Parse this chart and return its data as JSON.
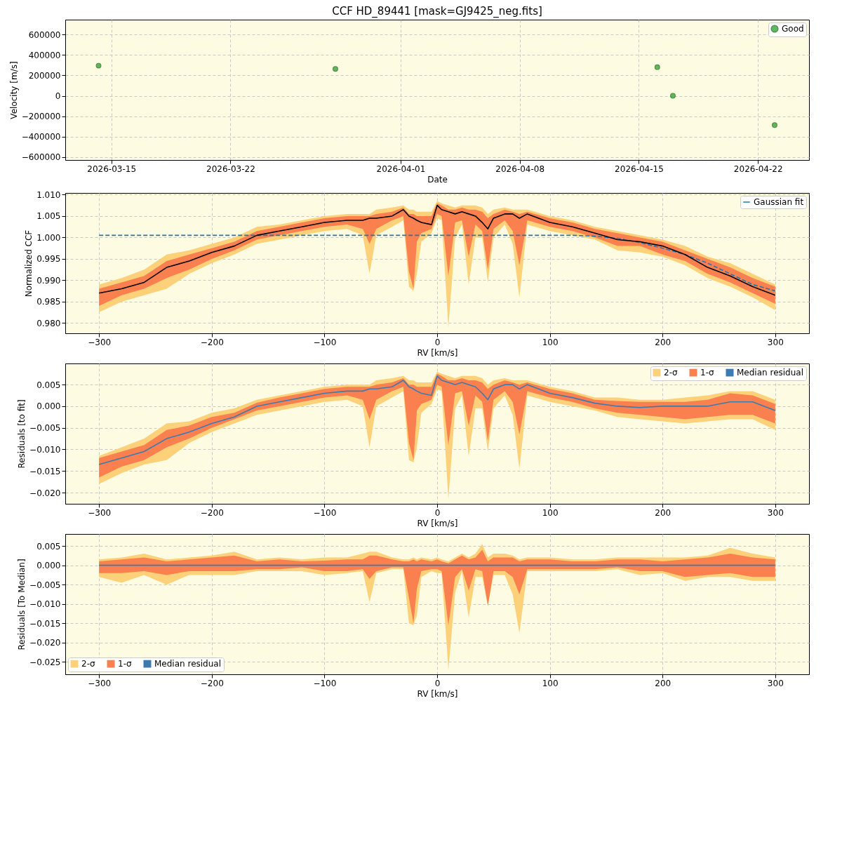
{
  "chart_data": [
    {
      "type": "scatter",
      "title": "CCF HD_89441 [mask=GJ9425_neg.fits]",
      "xlabel": "Date",
      "ylabel": "Velocity [m/s]",
      "x": [
        "2026-03-14T06:00",
        "2026-03-28T04:00",
        "2026-04-16T02:00",
        "2026-04-17T00:00",
        "2026-04-22T23:30"
      ],
      "series": [
        {
          "name": "Good",
          "color": "#2ca02c",
          "values": [
            295000,
            263000,
            281000,
            0,
            -287000
          ]
        }
      ],
      "xlim": [
        "2026-03-12T07:00",
        "2026-04-25T00:00"
      ],
      "xticks": [
        "2026-03-15",
        "2026-03-22",
        "2026-04-01",
        "2026-04-08",
        "2026-04-15",
        "2026-04-22"
      ],
      "ylim": [
        -629000,
        746000
      ],
      "yticks": [
        -600000,
        -400000,
        -200000,
        0,
        200000,
        400000,
        600000
      ],
      "grid": true,
      "legend": "top right",
      "marker": "circle"
    },
    {
      "type": "line",
      "xlabel": "RV [km/s]",
      "ylabel": "Normalized CCF",
      "x": [
        -300,
        -280,
        -260,
        -240,
        -220,
        -200,
        -180,
        -160,
        -140,
        -120,
        -100,
        -80,
        -66,
        -60,
        -54,
        -40,
        -30,
        -25,
        -21,
        -18,
        -14,
        -5,
        0,
        4,
        10,
        16,
        22,
        28,
        34,
        40,
        45,
        50,
        60,
        67,
        73,
        80,
        100,
        120,
        140,
        160,
        180,
        200,
        220,
        240,
        260,
        280,
        300
      ],
      "series": [
        {
          "type": "area",
          "color": "#fdd07a",
          "values": [
            null,
            null,
            null,
            null,
            null,
            null,
            null,
            null,
            null,
            null,
            null,
            null,
            null,
            null,
            null,
            null,
            null,
            null,
            null,
            null,
            null,
            null,
            null,
            null,
            null,
            null,
            null,
            null,
            null,
            null,
            null,
            null,
            null,
            null,
            null,
            null,
            null,
            null,
            null,
            null,
            null,
            null,
            null,
            null,
            null,
            null,
            null
          ],
          "lower": [
            0.9825,
            0.985,
            0.9865,
            0.988,
            0.9915,
            0.994,
            0.996,
            0.9985,
            0.9995,
            1.0005,
            1.0015,
            1.002,
            1.0005,
            0.9915,
            1.0005,
            1.0025,
            1.004,
            0.9885,
            0.9875,
            0.9915,
            0.999,
            1.001,
            1.0045,
            1.004,
            0.979,
            1.0,
            1.003,
            0.989,
            1.0,
            1.0,
            0.9895,
            1.0,
            1.003,
            0.9985,
            0.986,
            1.003,
            1.0015,
            1.0005,
            0.9995,
            0.997,
            0.9965,
            0.9955,
            0.9935,
            0.9905,
            0.9885,
            0.986,
            0.983
          ],
          "upper": [
            0.989,
            0.9905,
            0.9925,
            0.996,
            0.997,
            0.9985,
            1.0,
            1.0025,
            1.003,
            1.004,
            1.005,
            1.0055,
            1.0055,
            1.0055,
            1.0065,
            1.007,
            1.0075,
            1.0065,
            1.0065,
            1.006,
            1.006,
            1.006,
            1.0085,
            1.008,
            1.0075,
            1.007,
            1.0075,
            1.0075,
            1.0075,
            1.007,
            1.0055,
            1.0065,
            1.007,
            1.0065,
            1.0065,
            1.0065,
            1.005,
            1.004,
            1.0025,
            1.0015,
            1.0005,
            0.9995,
            0.998,
            0.9955,
            0.994,
            0.9915,
            0.989
          ]
        },
        {
          "type": "area",
          "color": "#fa8050",
          "values": [
            null,
            null,
            null,
            null,
            null,
            null,
            null,
            null,
            null,
            null,
            null,
            null,
            null,
            null,
            null,
            null,
            null,
            null,
            null,
            null,
            null,
            null,
            null,
            null,
            null,
            null,
            null,
            null,
            null,
            null,
            null,
            null,
            null,
            null,
            null,
            null,
            null,
            null,
            null,
            null,
            null,
            null,
            null,
            null,
            null,
            null,
            null
          ],
          "lower": [
            0.984,
            0.9865,
            0.988,
            0.9905,
            0.9925,
            0.995,
            0.997,
            0.9995,
            1.0005,
            1.0015,
            1.0025,
            1.003,
            1.002,
            0.9985,
            1.002,
            1.004,
            1.005,
            0.992,
            0.988,
            0.999,
            1.001,
            1.002,
            1.0055,
            1.005,
            0.991,
            1.0035,
            1.004,
            0.9955,
            1.003,
            1.0015,
            0.9925,
            1.002,
            1.004,
            1.0015,
            0.9935,
            1.004,
            1.0025,
            1.0015,
            1.0,
            0.998,
            0.998,
            0.996,
            0.9945,
            0.9915,
            0.9895,
            0.987,
            0.9845
          ],
          "upper": [
            0.988,
            0.9895,
            0.991,
            0.9945,
            0.996,
            0.9975,
            0.999,
            1.0015,
            1.0025,
            1.0035,
            1.0045,
            1.005,
            1.005,
            1.005,
            1.0055,
            1.006,
            1.007,
            1.0055,
            1.0055,
            1.005,
            1.005,
            1.005,
            1.008,
            1.0075,
            1.0065,
            1.0065,
            1.007,
            1.0065,
            1.0065,
            1.006,
            1.0045,
            1.0055,
            1.0065,
            1.006,
            1.0055,
            1.006,
            1.0045,
            1.0035,
            1.002,
            1.001,
            1.0,
            0.999,
            0.997,
            0.995,
            0.993,
            0.9905,
            0.9885
          ]
        },
        {
          "type": "line",
          "name": "Gaussian fit",
          "color": "#1f77b4",
          "line_style": "dashed",
          "values": [
            1.0005,
            1.0005,
            1.0005,
            1.0005,
            1.0005,
            1.0005,
            1.0005,
            1.0005,
            1.0005,
            1.0005,
            1.0005,
            1.0005,
            1.0005,
            1.0005,
            1.0005,
            1.0005,
            1.0005,
            1.0005,
            1.0005,
            1.0005,
            1.0005,
            1.0005,
            1.0005,
            1.0005,
            1.0005,
            1.0005,
            1.0005,
            1.0005,
            1.0005,
            1.0005,
            1.0005,
            1.0005,
            1.0005,
            1.0005,
            1.0005,
            1.0005,
            1.0005,
            1.0005,
            1.0003,
            0.9998,
            0.9988,
            0.9975,
            0.996,
            0.994,
            0.9915,
            0.989,
            0.9875
          ]
        },
        {
          "type": "line",
          "color": "#000000",
          "line_style": "solid",
          "values": [
            0.987,
            0.988,
            0.9895,
            0.993,
            0.9945,
            0.9965,
            0.998,
            1.0005,
            1.0015,
            1.0025,
            1.0035,
            1.004,
            1.004,
            1.0045,
            1.0045,
            1.005,
            1.0065,
            1.005,
            1.0045,
            1.004,
            1.0035,
            1.003,
            1.0075,
            1.0065,
            1.006,
            1.0055,
            1.006,
            1.0055,
            1.005,
            1.0035,
            1.002,
            1.0045,
            1.0055,
            1.0055,
            1.0045,
            1.0055,
            1.0035,
            1.0025,
            1.001,
            0.9995,
            0.999,
            0.998,
            0.996,
            0.993,
            0.991,
            0.9885,
            0.9865
          ]
        }
      ],
      "xlim": [
        -330,
        330
      ],
      "xticks": [
        -300,
        -200,
        -100,
        0,
        100,
        200,
        300
      ],
      "ylim": [
        0.9776,
        1.0104
      ],
      "yticks": [
        {
          "value": 0.98,
          "label": "0.980"
        },
        0.985,
        {
          "value": 0.99,
          "label": "0.990"
        },
        0.995,
        {
          "value": 1.0,
          "label": "1.000"
        },
        1.005,
        {
          "value": 1.01,
          "label": "1.010"
        }
      ],
      "grid": true,
      "legend": "top right"
    },
    {
      "type": "line",
      "xlabel": "RV [km/s]",
      "ylabel": "Residuals [to fit]",
      "x": [
        -300,
        -280,
        -260,
        -240,
        -220,
        -200,
        -180,
        -160,
        -140,
        -120,
        -100,
        -80,
        -66,
        -60,
        -54,
        -40,
        -30,
        -25,
        -21,
        -18,
        -14,
        -5,
        0,
        4,
        10,
        16,
        22,
        28,
        34,
        40,
        45,
        50,
        60,
        67,
        73,
        80,
        100,
        120,
        140,
        160,
        180,
        200,
        220,
        240,
        260,
        280,
        300
      ],
      "series": [
        {
          "type": "area",
          "name": "2-σ",
          "color": "#fdd07a",
          "values": [
            null,
            null,
            null,
            null,
            null,
            null,
            null,
            null,
            null,
            null,
            null,
            null,
            null,
            null,
            null,
            null,
            null,
            null,
            null,
            null,
            null,
            null,
            null,
            null,
            null,
            null,
            null,
            null,
            null,
            null,
            null,
            null,
            null,
            null,
            null,
            null,
            null,
            null,
            null,
            null,
            null,
            null,
            null,
            null,
            null,
            null,
            null
          ],
          "lower": [
            -0.018,
            -0.0155,
            -0.0135,
            -0.0125,
            -0.0085,
            -0.006,
            -0.004,
            -0.002,
            -0.001,
            0.0,
            0.001,
            0.0015,
            0.0,
            -0.0095,
            0.0,
            0.002,
            0.0035,
            -0.0125,
            -0.013,
            -0.0095,
            -0.0015,
            0.0005,
            0.004,
            0.0035,
            -0.0215,
            -0.0005,
            0.0025,
            -0.0115,
            -0.0005,
            -0.0005,
            -0.0105,
            -0.0005,
            0.0025,
            -0.002,
            -0.0145,
            0.0025,
            0.001,
            0.0,
            -0.001,
            -0.0025,
            -0.003,
            -0.0035,
            -0.004,
            -0.0035,
            -0.003,
            -0.003,
            -0.0055
          ],
          "upper": [
            -0.0115,
            -0.0095,
            -0.0075,
            -0.004,
            -0.0035,
            -0.0015,
            -0.0005,
            0.0015,
            0.0025,
            0.0035,
            0.0045,
            0.005,
            0.005,
            0.005,
            0.006,
            0.0065,
            0.007,
            0.006,
            0.006,
            0.0055,
            0.0055,
            0.0055,
            0.008,
            0.0075,
            0.007,
            0.0065,
            0.007,
            0.007,
            0.007,
            0.0065,
            0.005,
            0.006,
            0.0065,
            0.006,
            0.006,
            0.006,
            0.0045,
            0.0035,
            0.002,
            0.002,
            0.0015,
            0.0015,
            0.002,
            0.0025,
            0.0035,
            0.0035,
            0.0015
          ]
        },
        {
          "type": "area",
          "name": "1-σ",
          "color": "#fa8050",
          "values": [
            null,
            null,
            null,
            null,
            null,
            null,
            null,
            null,
            null,
            null,
            null,
            null,
            null,
            null,
            null,
            null,
            null,
            null,
            null,
            null,
            null,
            null,
            null,
            null,
            null,
            null,
            null,
            null,
            null,
            null,
            null,
            null,
            null,
            null,
            null,
            null,
            null,
            null,
            null,
            null,
            null,
            null,
            null,
            null,
            null,
            null,
            null
          ],
          "lower": [
            -0.0165,
            -0.014,
            -0.0125,
            -0.0095,
            -0.0075,
            -0.005,
            -0.003,
            -0.001,
            0.0,
            0.001,
            0.002,
            0.0025,
            0.0015,
            -0.003,
            0.0015,
            0.0035,
            0.0045,
            -0.0085,
            -0.0125,
            -0.001,
            0.0005,
            0.0015,
            0.005,
            0.0045,
            -0.009,
            0.003,
            0.0035,
            -0.0045,
            0.0025,
            0.001,
            -0.008,
            0.0015,
            0.0035,
            0.001,
            -0.0065,
            0.0035,
            0.002,
            0.001,
            -0.0005,
            -0.0015,
            -0.002,
            -0.0025,
            -0.003,
            -0.0025,
            -0.002,
            -0.002,
            -0.004
          ],
          "upper": [
            -0.012,
            -0.0105,
            -0.009,
            -0.0055,
            -0.0045,
            -0.0025,
            -0.0015,
            0.0008,
            0.002,
            0.003,
            0.004,
            0.0045,
            0.0045,
            0.0045,
            0.005,
            0.0055,
            0.0065,
            0.005,
            0.005,
            0.0045,
            0.0045,
            0.0045,
            0.0075,
            0.007,
            0.006,
            0.006,
            0.0065,
            0.006,
            0.006,
            0.0055,
            0.004,
            0.005,
            0.006,
            0.0055,
            0.005,
            0.0055,
            0.004,
            0.003,
            0.0015,
            0.0012,
            0.001,
            0.001,
            0.001,
            0.0015,
            0.003,
            0.0025,
            0.0005
          ]
        },
        {
          "type": "line",
          "name": "Median residual",
          "color": "#3a7bb0",
          "line_style": "solid",
          "values": [
            -0.0135,
            -0.012,
            -0.0105,
            -0.0075,
            -0.006,
            -0.004,
            -0.0025,
            0.0,
            0.001,
            0.002,
            0.003,
            0.0035,
            0.0035,
            0.004,
            0.004,
            0.0045,
            0.006,
            0.0045,
            0.004,
            0.0035,
            0.003,
            0.0025,
            0.007,
            0.006,
            0.0055,
            0.005,
            0.0055,
            0.005,
            0.0045,
            0.003,
            0.0015,
            0.004,
            0.005,
            0.005,
            0.004,
            0.005,
            0.003,
            0.002,
            0.0007,
            0.0,
            -0.0003,
            0.0,
            0.0,
            0.0,
            0.001,
            0.001,
            -0.001
          ]
        }
      ],
      "xlim": [
        -330,
        330
      ],
      "xticks": [
        -300,
        -200,
        -100,
        0,
        100,
        200,
        300
      ],
      "ylim": [
        -0.0226,
        0.0099
      ],
      "yticks": [
        {
          "value": -0.02,
          "label": "−0.020"
        },
        {
          "value": -0.015,
          "label": "−0.015"
        },
        {
          "value": -0.01,
          "label": "−0.010"
        },
        {
          "value": -0.005,
          "label": "−0.005"
        },
        {
          "value": 0.0,
          "label": "0.000"
        },
        {
          "value": 0.005,
          "label": "0.005"
        }
      ],
      "grid": true,
      "legend": "top right"
    },
    {
      "type": "line",
      "xlabel": "RV [km/s]",
      "ylabel": "Residuals [To Median]",
      "x": [
        -300,
        -280,
        -260,
        -240,
        -220,
        -200,
        -180,
        -160,
        -140,
        -120,
        -100,
        -80,
        -66,
        -60,
        -54,
        -40,
        -30,
        -25,
        -21,
        -18,
        -14,
        -5,
        0,
        4,
        10,
        16,
        22,
        28,
        34,
        40,
        45,
        50,
        60,
        67,
        73,
        80,
        100,
        120,
        140,
        160,
        180,
        200,
        220,
        240,
        260,
        280,
        300
      ],
      "series": [
        {
          "type": "area",
          "name": "2-σ",
          "color": "#fdd07a",
          "values": [
            null,
            null,
            null,
            null,
            null,
            null,
            null,
            null,
            null,
            null,
            null,
            null,
            null,
            null,
            null,
            null,
            null,
            null,
            null,
            null,
            null,
            null,
            null,
            null,
            null,
            null,
            null,
            null,
            null,
            null,
            null,
            null,
            null,
            null,
            null,
            null,
            null,
            null,
            null,
            null,
            null,
            null,
            null,
            null,
            null,
            null,
            null
          ],
          "lower": [
            -0.003,
            -0.0045,
            -0.0025,
            -0.005,
            -0.0025,
            -0.0025,
            -0.0025,
            -0.0015,
            -0.0015,
            -0.0015,
            -0.0025,
            -0.002,
            -0.0015,
            -0.0095,
            -0.002,
            -0.001,
            -0.001,
            -0.015,
            -0.0155,
            -0.013,
            -0.003,
            -0.0015,
            -0.002,
            -0.002,
            -0.027,
            -0.007,
            -0.0015,
            -0.0135,
            -0.003,
            -0.003,
            -0.0105,
            -0.0025,
            -0.0025,
            -0.0075,
            -0.0175,
            -0.0015,
            -0.0015,
            -0.0015,
            -0.0015,
            -0.001,
            -0.0025,
            -0.002,
            -0.004,
            -0.003,
            -0.003,
            -0.004,
            -0.004
          ],
          "upper": [
            0.0015,
            0.002,
            0.003,
            0.0015,
            0.002,
            0.0025,
            0.0035,
            0.0015,
            0.002,
            0.0015,
            0.002,
            0.002,
            0.003,
            0.0035,
            0.0035,
            0.002,
            0.0015,
            0.0015,
            0.002,
            0.0015,
            0.002,
            0.0015,
            0.002,
            0.0015,
            0.001,
            0.002,
            0.003,
            0.002,
            0.003,
            0.0055,
            0.002,
            0.003,
            0.003,
            0.0025,
            0.0015,
            0.002,
            0.002,
            0.0015,
            0.0015,
            0.002,
            0.002,
            0.002,
            0.002,
            0.0025,
            0.0045,
            0.003,
            0.002
          ]
        },
        {
          "type": "area",
          "name": "1-σ",
          "color": "#fa8050",
          "values": [
            null,
            null,
            null,
            null,
            null,
            null,
            null,
            null,
            null,
            null,
            null,
            null,
            null,
            null,
            null,
            null,
            null,
            null,
            null,
            null,
            null,
            null,
            null,
            null,
            null,
            null,
            null,
            null,
            null,
            null,
            null,
            null,
            null,
            null,
            null,
            null,
            null,
            null,
            null,
            null,
            null,
            null,
            null,
            null,
            null,
            null,
            null
          ],
          "lower": [
            -0.002,
            -0.002,
            -0.0015,
            -0.0025,
            -0.0015,
            -0.0015,
            -0.0015,
            -0.001,
            -0.001,
            -0.0005,
            -0.0015,
            -0.0015,
            -0.001,
            -0.0035,
            -0.0015,
            -0.0005,
            -0.0005,
            -0.0085,
            -0.015,
            -0.006,
            -0.0015,
            -0.001,
            -0.001,
            -0.0015,
            -0.0155,
            -0.003,
            -0.001,
            -0.0065,
            -0.001,
            -0.0015,
            -0.0105,
            -0.0015,
            -0.0015,
            -0.003,
            -0.0075,
            -0.001,
            -0.001,
            -0.001,
            -0.001,
            -0.0005,
            -0.0015,
            -0.0015,
            -0.003,
            -0.0025,
            -0.002,
            -0.003,
            -0.003
          ],
          "upper": [
            0.001,
            0.0015,
            0.002,
            0.001,
            0.0015,
            0.002,
            0.0025,
            0.001,
            0.0015,
            0.001,
            0.0012,
            0.0015,
            0.0015,
            0.0025,
            0.0025,
            0.0015,
            0.001,
            0.001,
            0.0015,
            0.001,
            0.0015,
            0.001,
            0.0015,
            0.001,
            0.0005,
            0.0015,
            0.0025,
            0.0015,
            0.002,
            0.004,
            0.001,
            0.002,
            0.002,
            0.002,
            0.001,
            0.0015,
            0.0015,
            0.001,
            0.001,
            0.0015,
            0.0015,
            0.001,
            0.0015,
            0.002,
            0.003,
            0.002,
            0.0015
          ]
        },
        {
          "type": "line",
          "name": "Median residual",
          "color": "#3a7bb0",
          "line_style": "solid",
          "values": [
            0,
            0,
            0,
            0,
            0,
            0,
            0,
            0,
            0,
            0,
            0,
            0,
            0,
            0,
            0,
            0,
            0,
            0,
            0,
            0,
            0,
            0,
            0,
            0,
            0,
            0,
            0,
            0,
            0,
            0,
            0,
            0,
            0,
            0,
            0,
            0,
            0,
            0,
            0,
            0,
            0,
            0,
            0,
            0,
            0,
            0,
            0
          ]
        }
      ],
      "xlim": [
        -330,
        330
      ],
      "xticks": [
        -300,
        -200,
        -100,
        0,
        100,
        200,
        300
      ],
      "ylim": [
        -0.0282,
        0.0081
      ],
      "yticks": [
        {
          "value": -0.025,
          "label": "−0.025"
        },
        {
          "value": -0.02,
          "label": "−0.020"
        },
        {
          "value": -0.015,
          "label": "−0.015"
        },
        {
          "value": -0.01,
          "label": "−0.010"
        },
        {
          "value": -0.005,
          "label": "−0.005"
        },
        {
          "value": 0.0,
          "label": "0.000"
        },
        {
          "value": 0.005,
          "label": "0.005"
        }
      ],
      "grid": true,
      "legend": "bottom left"
    }
  ]
}
